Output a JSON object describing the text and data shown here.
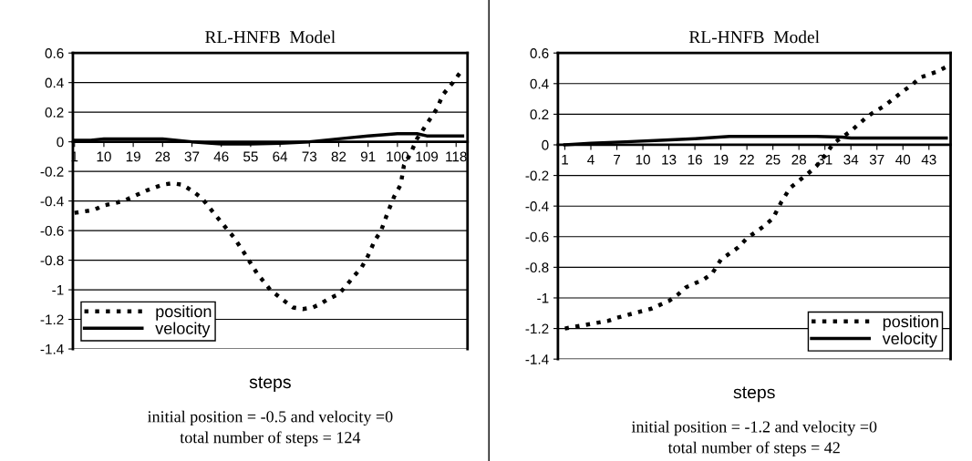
{
  "chart_data": [
    {
      "type": "line",
      "title": "RL-HNFB  Model",
      "xlabel": "steps",
      "annotations": [
        "initial position = -0.5 and velocity =0",
        "total number of steps = 124"
      ],
      "xlim": [
        0.5,
        121.5
      ],
      "xticks": [
        1,
        10,
        19,
        28,
        37,
        46,
        55,
        64,
        73,
        82,
        91,
        100,
        109,
        118
      ],
      "ylim": [
        -1.4,
        0.6
      ],
      "yticks": [
        -1.4,
        -1.2,
        -1,
        -0.8,
        -0.6,
        -0.4,
        -0.2,
        0,
        0.2,
        0.4,
        0.6
      ],
      "grid": "y",
      "legend": "bottom left",
      "series": [
        {
          "name": "position",
          "color": "#000000",
          "line_style": "dotted",
          "x": [
            1,
            7,
            10,
            16,
            19,
            23,
            28,
            31,
            34,
            37,
            40,
            44,
            47,
            50,
            53,
            57,
            61,
            65,
            68,
            71,
            74,
            76,
            79,
            82,
            84,
            87,
            89,
            91,
            93,
            95,
            97,
            99,
            101,
            102,
            104,
            106,
            109,
            112,
            114,
            117,
            120
          ],
          "values": [
            -0.48,
            -0.46,
            -0.43,
            -0.4,
            -0.37,
            -0.33,
            -0.29,
            -0.28,
            -0.29,
            -0.33,
            -0.38,
            -0.49,
            -0.57,
            -0.65,
            -0.75,
            -0.89,
            -1.0,
            -1.07,
            -1.12,
            -1.13,
            -1.12,
            -1.1,
            -1.06,
            -1.03,
            -0.98,
            -0.9,
            -0.85,
            -0.77,
            -0.67,
            -0.6,
            -0.48,
            -0.37,
            -0.29,
            -0.16,
            -0.08,
            0.02,
            0.12,
            0.22,
            0.32,
            0.4,
            0.49
          ]
        },
        {
          "name": "velocity",
          "color": "#000000",
          "line_style": "solid",
          "x": [
            1,
            6,
            10,
            19,
            28,
            37,
            46,
            55,
            64,
            73,
            82,
            91,
            100,
            106,
            109,
            120
          ],
          "values": [
            0.01,
            0.01,
            0.02,
            0.02,
            0.02,
            0.0,
            -0.015,
            -0.015,
            -0.01,
            0.0,
            0.02,
            0.04,
            0.055,
            0.055,
            0.04,
            0.04
          ]
        }
      ]
    },
    {
      "type": "line",
      "title": "RL-HNFB  Model",
      "xlabel": "steps",
      "annotations": [
        "initial position = -1.2 and velocity =0",
        "total number of steps = 42"
      ],
      "xlim": [
        0.2,
        45.5
      ],
      "xticks": [
        1,
        4,
        7,
        10,
        13,
        16,
        19,
        22,
        25,
        28,
        31,
        34,
        37,
        40,
        43
      ],
      "ylim": [
        -1.4,
        0.6
      ],
      "yticks": [
        -1.4,
        -1.2,
        -1,
        -0.8,
        -0.6,
        -0.4,
        -0.2,
        0,
        0.2,
        0.4,
        0.6
      ],
      "grid": "y",
      "legend": "bottom right",
      "series": [
        {
          "name": "position",
          "color": "#000000",
          "line_style": "dotted",
          "x": [
            1,
            3,
            6,
            7,
            11,
            13,
            14,
            15,
            17,
            18,
            19,
            21,
            22,
            24,
            25,
            26,
            27,
            29,
            30,
            31,
            32,
            34,
            35,
            36,
            38,
            40,
            41,
            42,
            44,
            45
          ],
          "values": [
            -1.2,
            -1.18,
            -1.15,
            -1.13,
            -1.07,
            -1.02,
            -0.98,
            -0.93,
            -0.88,
            -0.84,
            -0.75,
            -0.67,
            -0.61,
            -0.53,
            -0.48,
            -0.37,
            -0.28,
            -0.19,
            -0.14,
            -0.07,
            0.01,
            0.09,
            0.14,
            0.19,
            0.26,
            0.35,
            0.39,
            0.44,
            0.48,
            0.51
          ]
        },
        {
          "name": "velocity",
          "color": "#000000",
          "line_style": "solid",
          "x": [
            1,
            4,
            8,
            12,
            16,
            20,
            25,
            30,
            33,
            34,
            45
          ],
          "values": [
            0.0,
            0.01,
            0.02,
            0.03,
            0.04,
            0.055,
            0.055,
            0.055,
            0.05,
            0.045,
            0.045
          ]
        }
      ]
    }
  ]
}
